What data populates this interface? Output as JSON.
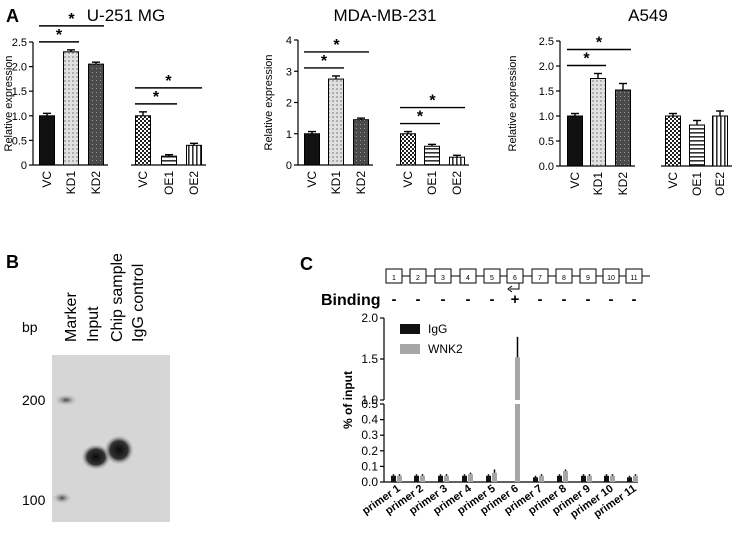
{
  "panel_labels": {
    "a": "A",
    "b": "B",
    "c": "C"
  },
  "panelA": {
    "ylabel": "Relative expression",
    "x_labels": [
      "VC",
      "KD1",
      "KD2",
      "VC",
      "OE1",
      "OE2"
    ],
    "sig_marker": "*"
  },
  "panelB": {
    "lane_labels": [
      "Marker",
      "Input",
      "Chip sample",
      "IgG control"
    ],
    "unit_label": "bp",
    "size_labels": [
      "200",
      "100"
    ]
  },
  "panelC": {
    "binding_label": "Binding",
    "binding_marks": [
      "-",
      "-",
      "-",
      "-",
      "-",
      "+",
      "-",
      "-",
      "-",
      "-",
      "-"
    ],
    "region_numbers": [
      "1",
      "2",
      "3",
      "4",
      "5",
      "6",
      "7",
      "8",
      "9",
      "10",
      "11"
    ],
    "ylabel": "% of input"
  },
  "chart_data": [
    {
      "type": "bar",
      "title": "U-251 MG",
      "ylabel": "Relative expression",
      "categories": [
        "VC",
        "KD1",
        "KD2",
        "VC",
        "OE1",
        "OE2"
      ],
      "values": [
        1.0,
        2.3,
        2.05,
        1.0,
        0.18,
        0.4
      ],
      "errors": [
        0.05,
        0.04,
        0.04,
        0.08,
        0.03,
        0.04
      ],
      "ylim": [
        0,
        2.5
      ],
      "yticks": [
        "0",
        "0.5",
        "1.0",
        "1.5",
        "2.0",
        "2.5"
      ],
      "significance": [
        [
          "VC",
          "KD1"
        ],
        [
          "VC",
          "KD2"
        ],
        [
          "VC",
          "OE1"
        ],
        [
          "VC",
          "OE2"
        ]
      ]
    },
    {
      "type": "bar",
      "title": "MDA-MB-231",
      "ylabel": "Relative expression",
      "categories": [
        "VC",
        "KD1",
        "KD2",
        "VC",
        "OE1",
        "OE2"
      ],
      "values": [
        1.0,
        2.75,
        1.45,
        1.0,
        0.6,
        0.25
      ],
      "errors": [
        0.07,
        0.1,
        0.05,
        0.07,
        0.06,
        0.06
      ],
      "ylim": [
        0,
        4
      ],
      "yticks": [
        "0",
        "1",
        "2",
        "3",
        "4"
      ],
      "significance": [
        [
          "VC",
          "KD1"
        ],
        [
          "VC",
          "KD2"
        ],
        [
          "VC",
          "OE1"
        ],
        [
          "VC",
          "OE2"
        ]
      ]
    },
    {
      "type": "bar",
      "title": "A549",
      "ylabel": "Relative expression",
      "categories": [
        "VC",
        "KD1",
        "KD2",
        "VC",
        "OE1",
        "OE2"
      ],
      "values": [
        1.0,
        1.75,
        1.52,
        1.0,
        0.82,
        1.0
      ],
      "errors": [
        0.05,
        0.1,
        0.13,
        0.05,
        0.09,
        0.1
      ],
      "ylim": [
        0,
        2.5
      ],
      "yticks": [
        "0.0",
        "0.5",
        "1.0",
        "1.5",
        "2.0",
        "2.5"
      ],
      "significance": [
        [
          "VC",
          "KD1"
        ],
        [
          "VC",
          "KD2"
        ]
      ]
    },
    {
      "type": "bar",
      "title": "",
      "ylabel": "% of input",
      "categories": [
        "primer 1",
        "primer 2",
        "primer 3",
        "primer 4",
        "primer 5",
        "primer 6",
        "primer 7",
        "primer 8",
        "primer 9",
        "primer 10",
        "primer 11"
      ],
      "series": [
        {
          "name": "IgG",
          "color": "#111111",
          "values": [
            0.04,
            0.04,
            0.04,
            0.04,
            0.04,
            0.0,
            0.03,
            0.04,
            0.04,
            0.04,
            0.03
          ],
          "errors": [
            0.01,
            0.01,
            0.01,
            0.01,
            0.01,
            0.01,
            0.01,
            0.01,
            0.01,
            0.01,
            0.01
          ]
        },
        {
          "name": "WNK2",
          "color": "#a6a6a6",
          "values": [
            0.04,
            0.04,
            0.04,
            0.05,
            0.06,
            1.52,
            0.04,
            0.07,
            0.04,
            0.04,
            0.04
          ],
          "errors": [
            0.01,
            0.01,
            0.01,
            0.01,
            0.02,
            0.25,
            0.01,
            0.01,
            0.01,
            0.01,
            0.01
          ]
        }
      ],
      "ylim": [
        0,
        2.0
      ],
      "axis_break": [
        0.5,
        1.0
      ],
      "yticks": [
        "0.0",
        "0.1",
        "0.2",
        "0.3",
        "0.4",
        "0.5",
        "1.0",
        "1.5",
        "2.0"
      ],
      "legend": "top-left"
    }
  ]
}
